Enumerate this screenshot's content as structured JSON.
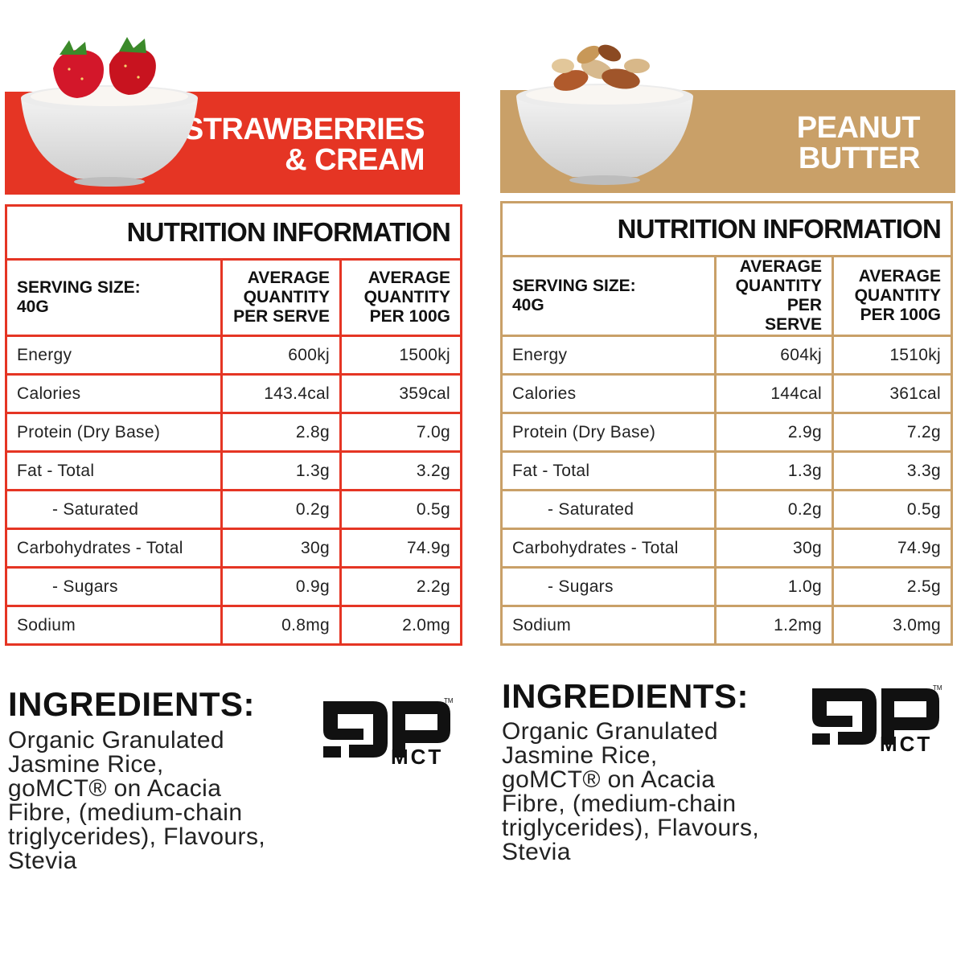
{
  "products": [
    {
      "flavour_line1": "STRAWBERRIES",
      "flavour_line2": "& CREAM",
      "color": "#e53524",
      "table_title": "NUTRITION INFORMATION",
      "serving_label": "SERVING SIZE:",
      "serving_value": "40G",
      "col1": [
        "AVERAGE",
        "QUANTITY",
        "PER SERVE"
      ],
      "col2": [
        "AVERAGE",
        "QUANTITY",
        "PER 100G"
      ],
      "rows": [
        {
          "label": "Energy",
          "per_serve": "600kj",
          "per_100g": "1500kj"
        },
        {
          "label": "Calories",
          "per_serve": "143.4cal",
          "per_100g": "359cal"
        },
        {
          "label": "Protein (Dry Base)",
          "per_serve": "2.8g",
          "per_100g": "7.0g"
        },
        {
          "label": "Fat - Total",
          "per_serve": "1.3g",
          "per_100g": "3.2g"
        },
        {
          "label": "- Saturated",
          "per_serve": "0.2g",
          "per_100g": "0.5g"
        },
        {
          "label": "Carbohydrates - Total",
          "per_serve": "30g",
          "per_100g": "74.9g"
        },
        {
          "label": "- Sugars",
          "per_serve": "0.9g",
          "per_100g": "2.2g"
        },
        {
          "label": "Sodium",
          "per_serve": "0.8mg",
          "per_100g": "2.0mg"
        }
      ],
      "ingredients_title": "INGREDIENTS:",
      "ingredients_lines": [
        "Organic Granulated",
        "Jasmine Rice,",
        "goMCT® on Acacia",
        "Fibre, (medium-chain",
        "triglycerides), Flavours,",
        "Stevia"
      ],
      "logo_text": "MCT",
      "logo_tm": "TM",
      "topping_icon": "strawberry-icon"
    },
    {
      "flavour_line1": "PEANUT",
      "flavour_line2": "BUTTER",
      "color": "#c9a068",
      "table_title": "NUTRITION INFORMATION",
      "serving_label": "SERVING SIZE:",
      "serving_value": "40G",
      "col1": [
        "AVERAGE",
        "QUANTITY",
        "PER SERVE"
      ],
      "col2": [
        "AVERAGE",
        "QUANTITY",
        "PER 100G"
      ],
      "rows": [
        {
          "label": "Energy",
          "per_serve": "604kj",
          "per_100g": "1510kj"
        },
        {
          "label": "Calories",
          "per_serve": "144cal",
          "per_100g": "361cal"
        },
        {
          "label": "Protein (Dry Base)",
          "per_serve": "2.9g",
          "per_100g": "7.2g"
        },
        {
          "label": "Fat - Total",
          "per_serve": "1.3g",
          "per_100g": "3.3g"
        },
        {
          "label": "- Saturated",
          "per_serve": "0.2g",
          "per_100g": "0.5g"
        },
        {
          "label": "Carbohydrates - Total",
          "per_serve": "30g",
          "per_100g": "74.9g"
        },
        {
          "label": "- Sugars",
          "per_serve": "1.0g",
          "per_100g": "2.5g"
        },
        {
          "label": "Sodium",
          "per_serve": "1.2mg",
          "per_100g": "3.0mg"
        }
      ],
      "ingredients_title": "INGREDIENTS:",
      "ingredients_lines": [
        "Organic Granulated",
        "Jasmine Rice,",
        "goMCT® on Acacia",
        "Fibre, (medium-chain",
        "triglycerides), Flavours,",
        "Stevia"
      ],
      "logo_text": "MCT",
      "logo_tm": "TM",
      "topping_icon": "nuts-icon"
    }
  ]
}
